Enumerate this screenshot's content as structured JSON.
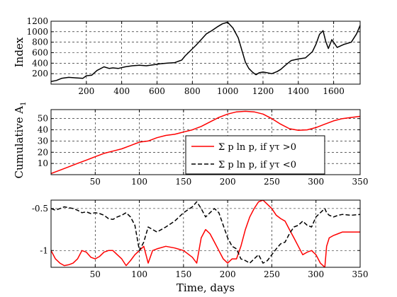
{
  "chart_data": [
    {
      "type": "line",
      "ylabel": "Index",
      "xlim": [
        0,
        1750
      ],
      "ylim": [
        0,
        1200
      ],
      "grid": true,
      "xticks": [
        "200",
        "400",
        "600",
        "800",
        "1000",
        "1200",
        "1400",
        "1600"
      ],
      "xtick_values": [
        200,
        400,
        600,
        800,
        1000,
        1200,
        1400,
        1600
      ],
      "yticks": [
        "200",
        "400",
        "600",
        "800",
        "1000",
        "1200"
      ],
      "ytick_values": [
        200,
        400,
        600,
        800,
        1000,
        1200
      ],
      "series": [
        {
          "color": "#000000",
          "dash": "solid",
          "x": [
            0,
            30,
            60,
            100,
            140,
            180,
            200,
            230,
            260,
            300,
            330,
            350,
            380,
            420,
            460,
            500,
            540,
            580,
            620,
            660,
            700,
            740,
            760,
            790,
            820,
            850,
            880,
            910,
            940,
            970,
            1000,
            1030,
            1060,
            1080,
            1100,
            1120,
            1140,
            1160,
            1180,
            1200,
            1220,
            1250,
            1280,
            1300,
            1330,
            1360,
            1400,
            1440,
            1480,
            1500,
            1520,
            1540,
            1555,
            1570,
            1590,
            1620,
            1660,
            1700,
            1730,
            1750
          ],
          "y": [
            50,
            70,
            110,
            130,
            120,
            110,
            160,
            170,
            260,
            330,
            300,
            310,
            300,
            330,
            350,
            360,
            350,
            370,
            390,
            400,
            410,
            460,
            540,
            640,
            740,
            850,
            960,
            1020,
            1090,
            1150,
            1180,
            1070,
            880,
            650,
            420,
            300,
            230,
            180,
            220,
            230,
            220,
            200,
            240,
            280,
            370,
            450,
            480,
            500,
            620,
            760,
            950,
            1020,
            820,
            680,
            850,
            700,
            760,
            800,
            960,
            1120
          ]
        }
      ]
    },
    {
      "type": "line",
      "ylabel": "Cumulative A",
      "ylabel_sub": "1",
      "xlim": [
        0,
        350
      ],
      "ylim": [
        0,
        58
      ],
      "grid": true,
      "xticks": [
        "50",
        "100",
        "150",
        "200",
        "250",
        "300",
        "350"
      ],
      "xtick_values": [
        50,
        100,
        150,
        200,
        250,
        300,
        350
      ],
      "yticks": [
        "10",
        "20",
        "30",
        "40",
        "50"
      ],
      "ytick_values": [
        10,
        20,
        30,
        40,
        50
      ],
      "legend_position": "bottom-right",
      "legend": [
        "Σ p ln p, if yτ >0",
        "Σ p ln p, if yτ <0"
      ],
      "series": [
        {
          "name": "Σ p ln p, if yτ >0",
          "color": "#ff0000",
          "dash": "solid",
          "x": [
            0,
            10,
            20,
            30,
            40,
            50,
            60,
            70,
            80,
            90,
            100,
            110,
            120,
            130,
            140,
            150,
            160,
            170,
            180,
            190,
            200,
            210,
            220,
            230,
            240,
            250,
            260,
            270,
            280,
            290,
            300,
            310,
            320,
            330,
            340,
            350
          ],
          "y": [
            1,
            4,
            7,
            10,
            13,
            16,
            19,
            21,
            23,
            26,
            29,
            30,
            33,
            35,
            36,
            38,
            40,
            43,
            47,
            51,
            54,
            56,
            56.5,
            56,
            54,
            50,
            45,
            41,
            39.5,
            40,
            42,
            45,
            48,
            50,
            51,
            52
          ]
        }
      ]
    },
    {
      "type": "line",
      "xlabel": "Time, days",
      "xlim": [
        0,
        350
      ],
      "ylim": [
        -1.2,
        -0.4
      ],
      "grid": true,
      "xticks": [
        "50",
        "100",
        "150",
        "200",
        "250",
        "300",
        "350"
      ],
      "xtick_values": [
        50,
        100,
        150,
        200,
        250,
        300,
        350
      ],
      "yticks": [
        "-0.5",
        "-1"
      ],
      "ytick_values": [
        -0.5,
        -1
      ],
      "series": [
        {
          "color": "#ff0000",
          "dash": "solid",
          "x": [
            0,
            5,
            10,
            15,
            20,
            25,
            30,
            35,
            40,
            45,
            50,
            55,
            60,
            65,
            70,
            75,
            80,
            85,
            90,
            95,
            100,
            105,
            110,
            115,
            120,
            130,
            140,
            150,
            160,
            165,
            170,
            175,
            180,
            185,
            190,
            195,
            200,
            205,
            210,
            215,
            220,
            225,
            230,
            235,
            240,
            245,
            250,
            255,
            260,
            265,
            270,
            275,
            280,
            285,
            290,
            295,
            300,
            305,
            310,
            312,
            315,
            320,
            325,
            330,
            340,
            350
          ],
          "y": [
            -1.0,
            -1.1,
            -1.15,
            -1.18,
            -1.17,
            -1.15,
            -1.1,
            -1.0,
            -1.02,
            -1.08,
            -1.1,
            -1.07,
            -1.02,
            -1.0,
            -1.0,
            -1.05,
            -1.1,
            -1.18,
            -1.12,
            -1.05,
            -1.0,
            -0.95,
            -1.15,
            -1.0,
            -0.98,
            -0.95,
            -0.97,
            -1.0,
            -1.08,
            -1.15,
            -0.85,
            -0.75,
            -0.8,
            -0.9,
            -1.0,
            -1.1,
            -1.15,
            -1.1,
            -1.1,
            -0.95,
            -0.75,
            -0.6,
            -0.5,
            -0.42,
            -0.4,
            -0.45,
            -0.5,
            -0.58,
            -0.62,
            -0.65,
            -0.75,
            -0.85,
            -0.95,
            -1.05,
            -1.02,
            -1.0,
            -1.05,
            -1.15,
            -1.2,
            -0.95,
            -0.85,
            -0.82,
            -0.8,
            -0.78,
            -0.78,
            -0.78
          ]
        },
        {
          "color": "#000000",
          "dash": "dashed",
          "x": [
            0,
            5,
            10,
            15,
            20,
            25,
            30,
            35,
            40,
            45,
            50,
            55,
            60,
            65,
            70,
            75,
            80,
            85,
            90,
            95,
            100,
            105,
            110,
            115,
            120,
            130,
            140,
            150,
            160,
            165,
            170,
            175,
            180,
            185,
            190,
            195,
            200,
            205,
            210,
            215,
            220,
            225,
            230,
            235,
            240,
            245,
            250,
            255,
            260,
            265,
            270,
            275,
            280,
            285,
            290,
            295,
            300,
            305,
            310,
            312,
            315,
            320,
            325,
            330,
            340,
            350
          ],
          "y": [
            -0.5,
            -0.52,
            -0.5,
            -0.48,
            -0.49,
            -0.5,
            -0.52,
            -0.55,
            -0.54,
            -0.56,
            -0.55,
            -0.56,
            -0.58,
            -0.62,
            -0.63,
            -0.6,
            -0.58,
            -0.55,
            -0.6,
            -0.7,
            -1.0,
            -0.9,
            -0.72,
            -0.75,
            -0.78,
            -0.72,
            -0.65,
            -0.55,
            -0.48,
            -0.42,
            -0.5,
            -0.6,
            -0.55,
            -0.5,
            -0.55,
            -0.7,
            -0.85,
            -0.95,
            -0.98,
            -1.1,
            -1.12,
            -1.15,
            -1.1,
            -1.05,
            -1.15,
            -1.12,
            -1.05,
            -0.98,
            -0.92,
            -0.9,
            -0.8,
            -0.72,
            -0.7,
            -0.65,
            -0.7,
            -0.72,
            -0.6,
            -0.55,
            -0.5,
            -0.55,
            -0.58,
            -0.6,
            -0.58,
            -0.57,
            -0.58,
            -0.57
          ]
        }
      ]
    }
  ]
}
